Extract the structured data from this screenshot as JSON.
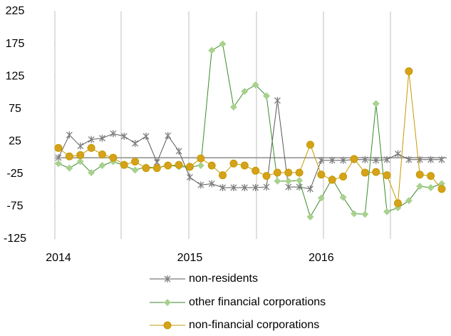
{
  "chart_data": {
    "type": "line",
    "categories": [
      "2014",
      null,
      null,
      null,
      null,
      null,
      null,
      null,
      null,
      null,
      null,
      null,
      "2015",
      null,
      null,
      null,
      null,
      null,
      null,
      null,
      null,
      null,
      null,
      null,
      "2016",
      null,
      null,
      null,
      null,
      null,
      null,
      null,
      null,
      null,
      null,
      null
    ],
    "series": [
      {
        "name": "non-residents",
        "color": "#595959",
        "marker_color": "#7f7f7f",
        "marker": "star",
        "values": [
          0,
          35,
          18,
          28,
          30,
          37,
          33,
          22,
          33,
          -7,
          34,
          10,
          -30,
          -42,
          -40,
          -46,
          -46,
          -46,
          -46,
          -45,
          88,
          -45,
          -45,
          -48,
          -4,
          -4,
          -4,
          -3,
          -3,
          -4,
          -3,
          6,
          -3,
          -3,
          -3,
          -3
        ]
      },
      {
        "name": "other financial corporations",
        "color": "#3a8a2a",
        "marker_color": "#a9d18e",
        "marker": "diamond",
        "values": [
          -9,
          -16,
          -6,
          -23,
          -12,
          -6,
          -12,
          -19,
          -14,
          -16,
          -11,
          -14,
          -14,
          -12,
          165,
          175,
          78,
          102,
          112,
          95,
          -36,
          -36,
          -35,
          -91,
          -62,
          -32,
          -61,
          -86,
          -87,
          83,
          -83,
          -77,
          -66,
          -44,
          -46,
          -40
        ]
      },
      {
        "name": "non-financial corporations",
        "color": "#c49a00",
        "marker_color": "#d6a21a",
        "marker": "circle",
        "values": [
          15,
          2,
          4,
          15,
          5,
          0,
          -11,
          -6,
          -16,
          -16,
          -12,
          -11,
          -14,
          -1,
          -12,
          -27,
          -9,
          -12,
          -20,
          -28,
          -23,
          -23,
          -23,
          20,
          -26,
          -34,
          -29,
          -2,
          -23,
          -22,
          -27,
          -70,
          133,
          -26,
          -28,
          -48
        ]
      }
    ],
    "ylim": [
      -125,
      225
    ],
    "yticks": [
      -125,
      -75,
      -25,
      25,
      75,
      125,
      175,
      225
    ],
    "legend": "bottom"
  }
}
